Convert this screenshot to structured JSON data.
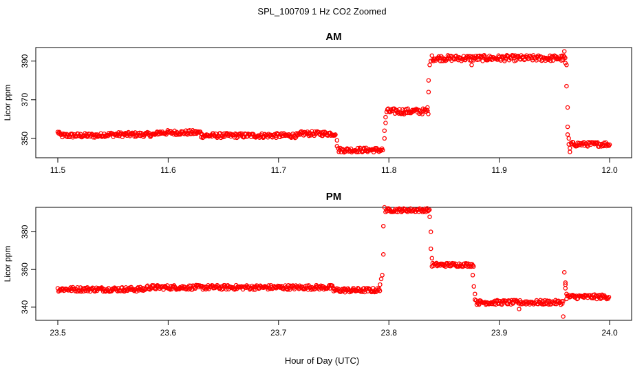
{
  "title": "SPL_100709  1 Hz CO2 Zoomed",
  "xlabel": "Hour of Day (UTC)",
  "chart_data": [
    {
      "type": "scatter",
      "title": "AM",
      "ylabel": "Licor ppm",
      "xlim": [
        11.5,
        12.0
      ],
      "ylim": [
        340,
        397
      ],
      "x_ticks": [
        "11.5",
        "11.6",
        "11.7",
        "11.8",
        "11.9",
        "12.0"
      ],
      "y_ticks": [
        "350",
        "370",
        "390"
      ],
      "marker": "open-circle",
      "color": "#ff0000",
      "segments": [
        {
          "x_start": 11.5,
          "x_end": 11.502,
          "y": 353.0,
          "noise": 1.0
        },
        {
          "x_start": 11.502,
          "x_end": 11.54,
          "y": 351.5,
          "noise": 1.2
        },
        {
          "x_start": 11.54,
          "x_end": 11.59,
          "y": 352.0,
          "noise": 1.2
        },
        {
          "x_start": 11.59,
          "x_end": 11.63,
          "y": 353.0,
          "noise": 1.2
        },
        {
          "x_start": 11.63,
          "x_end": 11.72,
          "y": 351.5,
          "noise": 1.2
        },
        {
          "x_start": 11.72,
          "x_end": 11.752,
          "y": 352.5,
          "noise": 1.2
        },
        {
          "x_start": 11.754,
          "x_end": 11.795,
          "y": 344.0,
          "noise": 1.2
        },
        {
          "x_start": 11.798,
          "x_end": 11.836,
          "y": 364.0,
          "noise": 1.5
        },
        {
          "x_start": 11.839,
          "x_end": 11.96,
          "y": 391.5,
          "noise": 1.5
        },
        {
          "x_start": 11.965,
          "x_end": 12.0,
          "y": 347.0,
          "noise": 1.2
        }
      ],
      "points": [
        {
          "x": 11.753,
          "y": 349
        },
        {
          "x": 11.753,
          "y": 346
        },
        {
          "x": 11.796,
          "y": 350
        },
        {
          "x": 11.796,
          "y": 354
        },
        {
          "x": 11.797,
          "y": 358
        },
        {
          "x": 11.797,
          "y": 361
        },
        {
          "x": 11.835,
          "y": 366
        },
        {
          "x": 11.836,
          "y": 374
        },
        {
          "x": 11.836,
          "y": 380
        },
        {
          "x": 11.837,
          "y": 388
        },
        {
          "x": 11.838,
          "y": 390
        },
        {
          "x": 11.875,
          "y": 388
        },
        {
          "x": 11.959,
          "y": 395
        },
        {
          "x": 11.96,
          "y": 389
        },
        {
          "x": 11.961,
          "y": 388
        },
        {
          "x": 11.961,
          "y": 377
        },
        {
          "x": 11.962,
          "y": 366
        },
        {
          "x": 11.962,
          "y": 356
        },
        {
          "x": 11.962,
          "y": 352
        },
        {
          "x": 11.963,
          "y": 350
        },
        {
          "x": 11.963,
          "y": 347
        },
        {
          "x": 11.964,
          "y": 345
        },
        {
          "x": 11.964,
          "y": 343
        }
      ]
    },
    {
      "type": "scatter",
      "title": "PM",
      "ylabel": "Licor ppm",
      "xlim": [
        23.5,
        24.0
      ],
      "ylim": [
        333,
        393
      ],
      "x_ticks": [
        "23.5",
        "23.6",
        "23.7",
        "23.8",
        "23.9",
        "24.0"
      ],
      "y_ticks": [
        "340",
        "360",
        "380"
      ],
      "marker": "open-circle",
      "color": "#ff0000",
      "segments": [
        {
          "x_start": 23.5,
          "x_end": 23.58,
          "y": 349.5,
          "noise": 1.2
        },
        {
          "x_start": 23.58,
          "x_end": 23.75,
          "y": 350.5,
          "noise": 1.2
        },
        {
          "x_start": 23.75,
          "x_end": 23.792,
          "y": 349.0,
          "noise": 1.2
        },
        {
          "x_start": 23.797,
          "x_end": 23.837,
          "y": 391.5,
          "noise": 1.0
        },
        {
          "x_start": 23.839,
          "x_end": 23.877,
          "y": 362.5,
          "noise": 1.0
        },
        {
          "x_start": 23.879,
          "x_end": 23.958,
          "y": 342.5,
          "noise": 1.2
        },
        {
          "x_start": 23.961,
          "x_end": 24.0,
          "y": 345.5,
          "noise": 1.2
        }
      ],
      "points": [
        {
          "x": 23.792,
          "y": 352
        },
        {
          "x": 23.793,
          "y": 355
        },
        {
          "x": 23.794,
          "y": 357
        },
        {
          "x": 23.795,
          "y": 368
        },
        {
          "x": 23.795,
          "y": 383
        },
        {
          "x": 23.796,
          "y": 393
        },
        {
          "x": 23.837,
          "y": 388
        },
        {
          "x": 23.838,
          "y": 380
        },
        {
          "x": 23.838,
          "y": 371
        },
        {
          "x": 23.839,
          "y": 366
        },
        {
          "x": 23.876,
          "y": 357
        },
        {
          "x": 23.877,
          "y": 351
        },
        {
          "x": 23.878,
          "y": 347
        },
        {
          "x": 23.878,
          "y": 344
        },
        {
          "x": 23.918,
          "y": 339
        },
        {
          "x": 23.958,
          "y": 335
        },
        {
          "x": 23.959,
          "y": 358.5
        },
        {
          "x": 23.96,
          "y": 353
        },
        {
          "x": 23.96,
          "y": 352
        },
        {
          "x": 23.96,
          "y": 350
        },
        {
          "x": 23.961,
          "y": 347
        }
      ]
    }
  ]
}
